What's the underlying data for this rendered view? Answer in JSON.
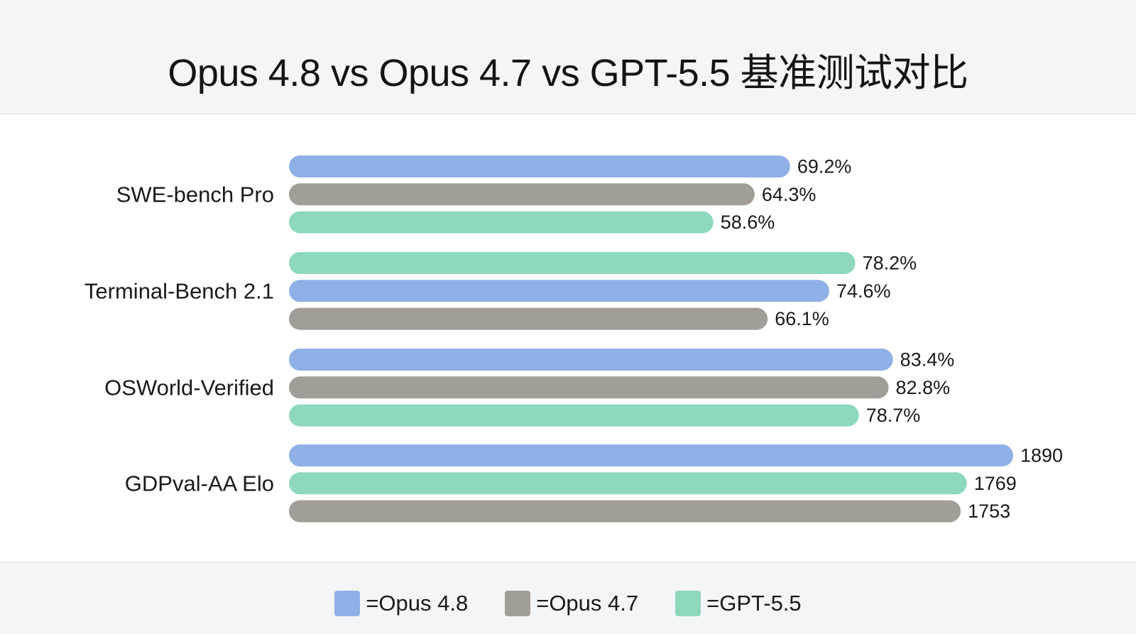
{
  "title": "Opus 4.8 vs Opus 4.7 vs GPT-5.5 基准测试对比",
  "colors": {
    "Opus 4.8": "#8fb0e6",
    "Opus 4.7": "#a39d97",
    "GPT-5.5": "#8ed8bb"
  },
  "legend": [
    {
      "label": "=Opus 4.8",
      "series": "Opus 4.8"
    },
    {
      "label": "=Opus 4.7",
      "series": "Opus 4.7"
    },
    {
      "label": "=GPT-5.5",
      "series": "GPT-5.5"
    }
  ],
  "chart_data": {
    "type": "bar",
    "orientation": "horizontal",
    "grid": false,
    "legend_position": "bottom",
    "groups": [
      {
        "category": "SWE-bench Pro",
        "scale_max": 100,
        "bars": [
          {
            "series": "Opus 4.8",
            "value": 69.2,
            "label": "69.2%"
          },
          {
            "series": "Opus 4.7",
            "value": 64.3,
            "label": "64.3%"
          },
          {
            "series": "GPT-5.5",
            "value": 58.6,
            "label": "58.6%"
          }
        ]
      },
      {
        "category": "Terminal-Bench 2.1",
        "scale_max": 100,
        "bars": [
          {
            "series": "GPT-5.5",
            "value": 78.2,
            "label": "78.2%"
          },
          {
            "series": "Opus 4.8",
            "value": 74.6,
            "label": "74.6%"
          },
          {
            "series": "Opus 4.7",
            "value": 66.1,
            "label": "66.1%"
          }
        ]
      },
      {
        "category": "OSWorld-Verified",
        "scale_max": 100,
        "bars": [
          {
            "series": "Opus 4.8",
            "value": 83.4,
            "label": "83.4%"
          },
          {
            "series": "Opus 4.7",
            "value": 82.8,
            "label": "82.8%"
          },
          {
            "series": "GPT-5.5",
            "value": 78.7,
            "label": "78.7%"
          }
        ]
      },
      {
        "category": "GDPval-AA Elo",
        "scale_max": 1890,
        "bars": [
          {
            "series": "Opus 4.8",
            "value": 1890,
            "label": "1890"
          },
          {
            "series": "GPT-5.5",
            "value": 1769,
            "label": "1769"
          },
          {
            "series": "Opus 4.7",
            "value": 1753,
            "label": "1753"
          }
        ]
      }
    ]
  }
}
